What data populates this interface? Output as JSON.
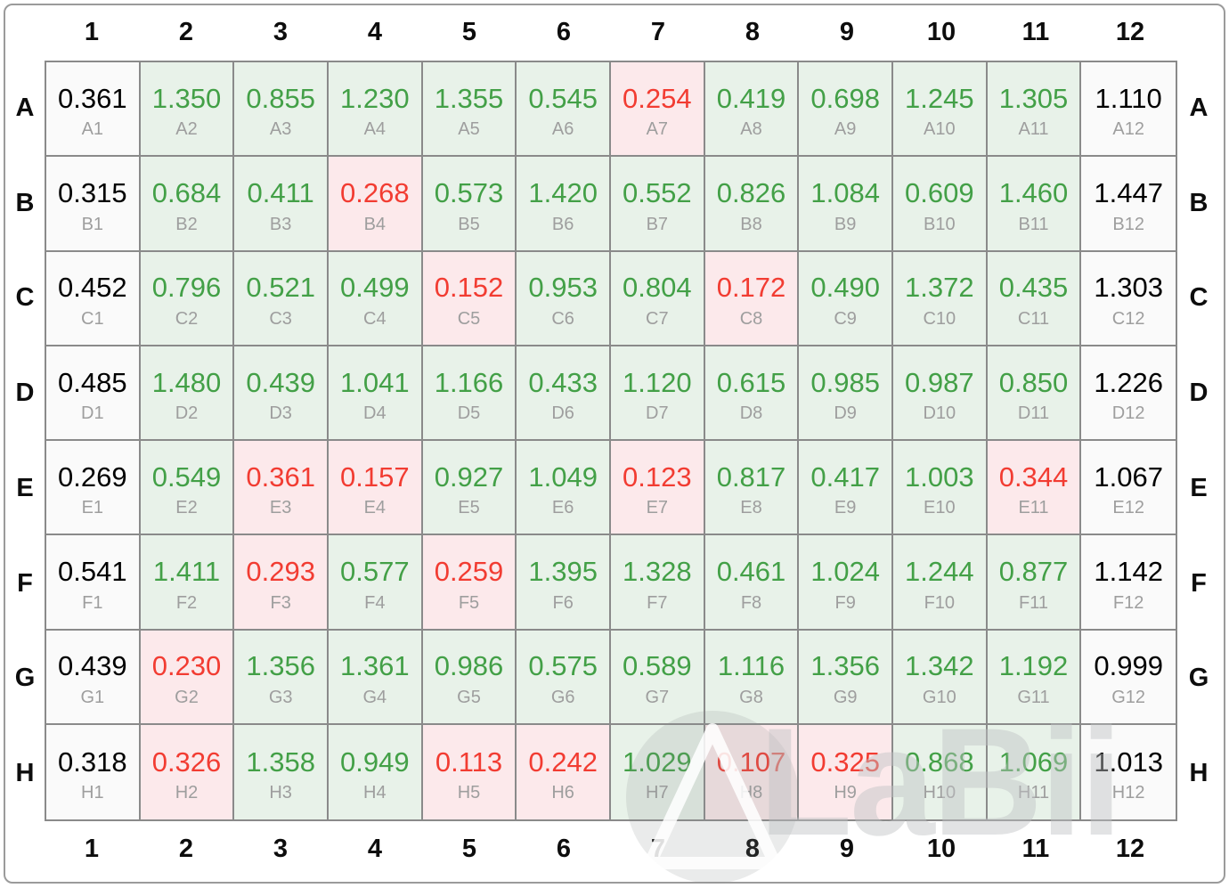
{
  "plate": {
    "col_headers": [
      "1",
      "2",
      "3",
      "4",
      "5",
      "6",
      "7",
      "8",
      "9",
      "10",
      "11",
      "12"
    ],
    "row_headers": [
      "A",
      "B",
      "C",
      "D",
      "E",
      "F",
      "G",
      "H"
    ],
    "rows": [
      {
        "label": "A",
        "values": [
          "0.361",
          "1.350",
          "0.855",
          "1.230",
          "1.355",
          "0.545",
          "0.254",
          "0.419",
          "0.698",
          "1.245",
          "1.305",
          "1.110"
        ],
        "states": [
          "blank",
          "positive",
          "positive",
          "positive",
          "positive",
          "positive",
          "negative",
          "positive",
          "positive",
          "positive",
          "positive",
          "blank"
        ]
      },
      {
        "label": "B",
        "values": [
          "0.315",
          "0.684",
          "0.411",
          "0.268",
          "0.573",
          "1.420",
          "0.552",
          "0.826",
          "1.084",
          "0.609",
          "1.460",
          "1.447"
        ],
        "states": [
          "blank",
          "positive",
          "positive",
          "negative",
          "positive",
          "positive",
          "positive",
          "positive",
          "positive",
          "positive",
          "positive",
          "blank"
        ]
      },
      {
        "label": "C",
        "values": [
          "0.452",
          "0.796",
          "0.521",
          "0.499",
          "0.152",
          "0.953",
          "0.804",
          "0.172",
          "0.490",
          "1.372",
          "0.435",
          "1.303"
        ],
        "states": [
          "blank",
          "positive",
          "positive",
          "positive",
          "negative",
          "positive",
          "positive",
          "negative",
          "positive",
          "positive",
          "positive",
          "blank"
        ]
      },
      {
        "label": "D",
        "values": [
          "0.485",
          "1.480",
          "0.439",
          "1.041",
          "1.166",
          "0.433",
          "1.120",
          "0.615",
          "0.985",
          "0.987",
          "0.850",
          "1.226"
        ],
        "states": [
          "blank",
          "positive",
          "positive",
          "positive",
          "positive",
          "positive",
          "positive",
          "positive",
          "positive",
          "positive",
          "positive",
          "blank"
        ]
      },
      {
        "label": "E",
        "values": [
          "0.269",
          "0.549",
          "0.361",
          "0.157",
          "0.927",
          "1.049",
          "0.123",
          "0.817",
          "0.417",
          "1.003",
          "0.344",
          "1.067"
        ],
        "states": [
          "blank",
          "positive",
          "negative",
          "negative",
          "positive",
          "positive",
          "negative",
          "positive",
          "positive",
          "positive",
          "negative",
          "blank"
        ]
      },
      {
        "label": "F",
        "values": [
          "0.541",
          "1.411",
          "0.293",
          "0.577",
          "0.259",
          "1.395",
          "1.328",
          "0.461",
          "1.024",
          "1.244",
          "0.877",
          "1.142"
        ],
        "states": [
          "blank",
          "positive",
          "negative",
          "positive",
          "negative",
          "positive",
          "positive",
          "positive",
          "positive",
          "positive",
          "positive",
          "blank"
        ]
      },
      {
        "label": "G",
        "values": [
          "0.439",
          "0.230",
          "1.356",
          "1.361",
          "0.986",
          "0.575",
          "0.589",
          "1.116",
          "1.356",
          "1.342",
          "1.192",
          "0.999"
        ],
        "states": [
          "blank",
          "negative",
          "positive",
          "positive",
          "positive",
          "positive",
          "positive",
          "positive",
          "positive",
          "positive",
          "positive",
          "blank"
        ]
      },
      {
        "label": "H",
        "values": [
          "0.318",
          "0.326",
          "1.358",
          "0.949",
          "0.113",
          "0.242",
          "1.029",
          "0.107",
          "0.325",
          "0.868",
          "1.069",
          "1.013"
        ],
        "states": [
          "blank",
          "negative",
          "positive",
          "positive",
          "negative",
          "negative",
          "positive",
          "negative",
          "negative",
          "positive",
          "positive",
          "blank"
        ]
      }
    ]
  },
  "watermark": {
    "text": "LaBii",
    "logo": "triangle-in-circle-icon"
  },
  "colors": {
    "positive_bg": "#e8f2e9",
    "positive_text": "#43a047",
    "negative_bg": "#fce9eb",
    "negative_text": "#f23c32",
    "blank_bg": "#fafafa",
    "blank_text": "#000000",
    "grid_line": "#8a8a8a",
    "well_label": "#9e9e9e",
    "header_text": "#0d0d0d"
  }
}
